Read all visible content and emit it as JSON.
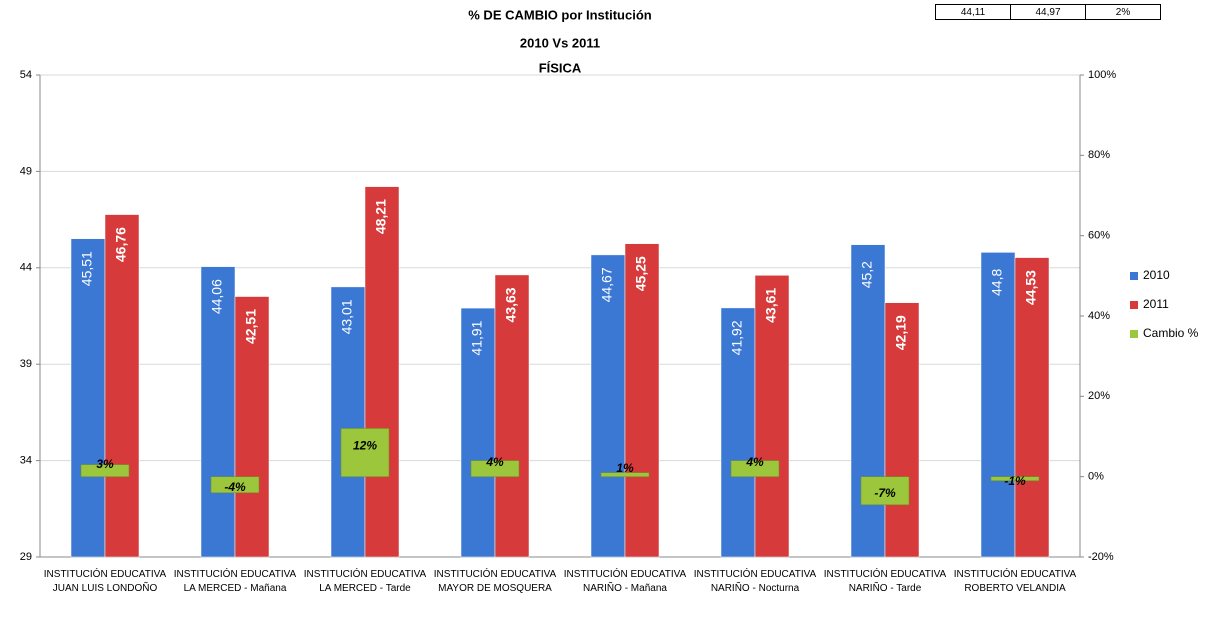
{
  "chart_data": {
    "type": "bar",
    "title": "% DE CAMBIO por Institución",
    "subtitle": "2010  Vs  2011",
    "subject": "FÍSICA",
    "summary_table": [
      "44,11",
      "44,97",
      "2%"
    ],
    "categories": [
      "INSTITUCIÓN EDUCATIVA JUAN LUIS LONDOÑO",
      "INSTITUCIÓN EDUCATIVA LA MERCED - Mañana",
      "INSTITUCIÓN EDUCATIVA LA MERCED - Tarde",
      "INSTITUCIÓN EDUCATIVA MAYOR DE MOSQUERA",
      "INSTITUCIÓN EDUCATIVA NARIÑO - Mañana",
      "INSTITUCIÓN EDUCATIVA NARIÑO - Nocturna",
      "INSTITUCIÓN EDUCATIVA NARIÑO - Tarde",
      "INSTITUCIÓN EDUCATIVA ROBERTO VELANDIA"
    ],
    "series": [
      {
        "name": "2010",
        "color": "#3b78d4",
        "values": [
          45.51,
          44.06,
          43.01,
          41.91,
          44.67,
          41.92,
          45.2,
          44.8
        ],
        "value_labels": [
          "45,51",
          "44,06",
          "43,01",
          "41,91",
          "44,67",
          "41,92",
          "45,2",
          "44,8"
        ]
      },
      {
        "name": "2011",
        "color": "#d63a3a",
        "values": [
          46.76,
          42.51,
          48.21,
          43.63,
          45.25,
          43.61,
          42.19,
          44.53
        ],
        "value_labels": [
          "46,76",
          "42,51",
          "48,21",
          "43,63",
          "45,25",
          "43,61",
          "42,19",
          "44,53"
        ]
      },
      {
        "name": "Cambio %",
        "color": "#9cc63b",
        "axis": "y2",
        "values": [
          3,
          -4,
          12,
          4,
          1,
          4,
          -7,
          -1
        ],
        "value_labels": [
          "3%",
          "-4%",
          "12%",
          "4%",
          "1%",
          "4%",
          "-7%",
          "-1%"
        ]
      }
    ],
    "ylim": [
      29,
      54
    ],
    "yticks": [
      29,
      34,
      39,
      44,
      49,
      54
    ],
    "y2lim": [
      -20,
      100
    ],
    "y2ticks": [
      {
        "value": -20,
        "label": "-20%"
      },
      {
        "value": 0,
        "label": "0%"
      },
      {
        "value": 20,
        "label": "20%"
      },
      {
        "value": 40,
        "label": "40%"
      },
      {
        "value": 60,
        "label": "60%"
      },
      {
        "value": 80,
        "label": "80%"
      },
      {
        "value": 100,
        "label": "100%"
      }
    ],
    "grid": true,
    "legend": "right"
  }
}
